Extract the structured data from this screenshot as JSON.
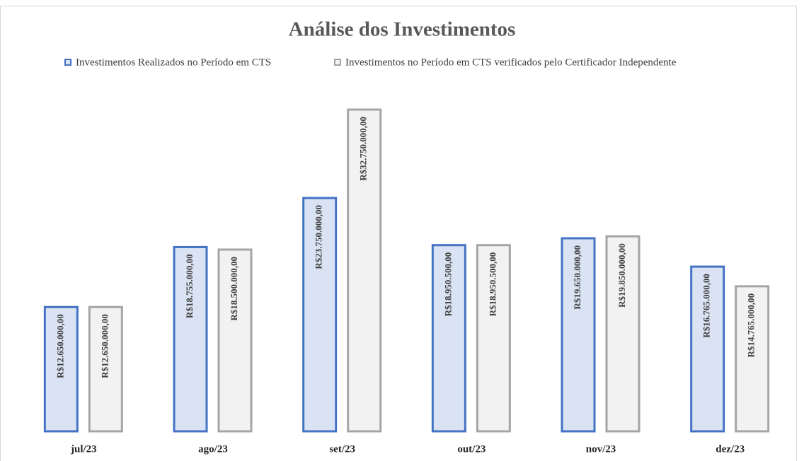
{
  "chart_data": {
    "type": "bar",
    "title": "Análise dos Investimentos",
    "categories": [
      "jul/23",
      "ago/23",
      "set/23",
      "out/23",
      "nov/23",
      "dez/23"
    ],
    "series": [
      {
        "name": "Investimentos Realizados no Período em CTS",
        "color": "#4472c4",
        "fill": "#dae3f3",
        "values": [
          12650000,
          18755000,
          23750000,
          18950500,
          19650000,
          16765000
        ],
        "value_labels": [
          "R$12.650.000,00",
          "R$18.755.000,00",
          "R$23.750.000,00",
          "R$18.950.500,00",
          "R$19.650.000,00",
          "R$16.765.000,00"
        ]
      },
      {
        "name": "Investimentos no Período em CTS verificados pelo Certificador Independente",
        "color": "#a5a5a5",
        "fill": "#f2f2f2",
        "values": [
          12650000,
          18500000,
          32750000,
          18950500,
          19850000,
          14765000
        ],
        "value_labels": [
          "R$12.650.000,00",
          "R$18.500.000,00",
          "R$32.750.000,00",
          "R$18.950.500,00",
          "R$19.850.000,00",
          "R$14.765.000,00"
        ]
      }
    ]
  }
}
